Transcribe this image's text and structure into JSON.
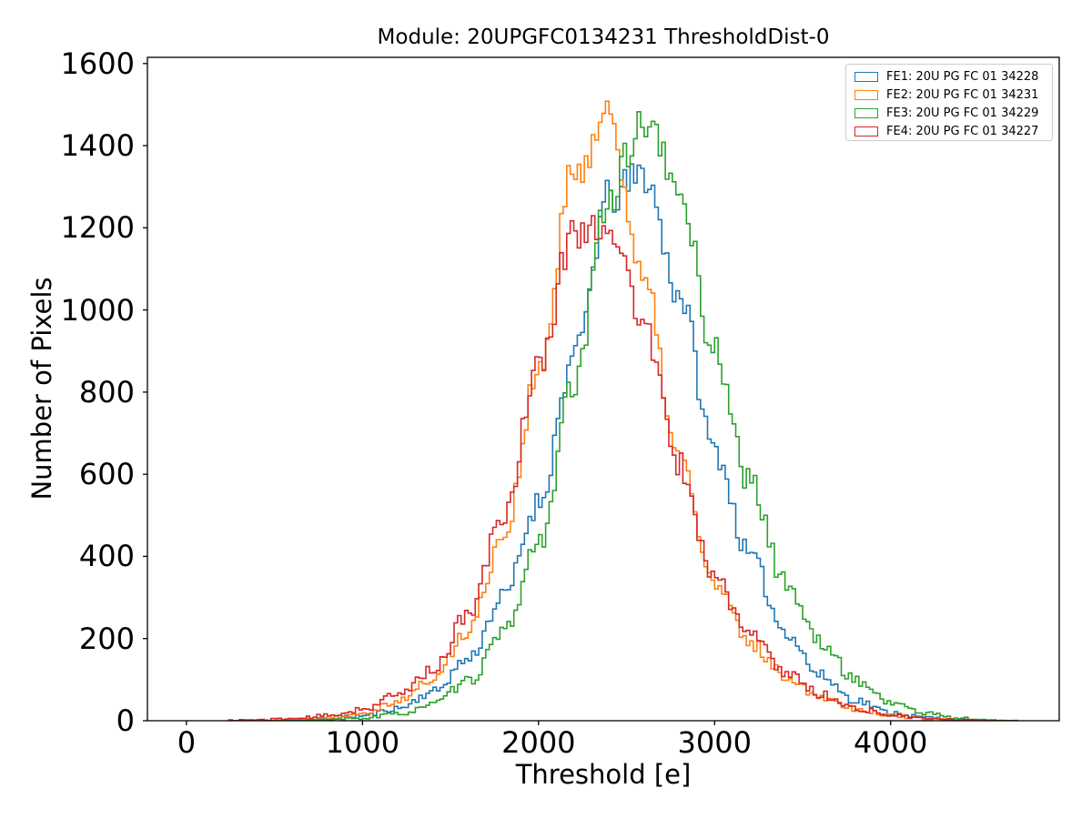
{
  "chart_data": {
    "type": "step-histogram",
    "title": "Module: 20UPGFC0134231 ThresholdDist-0",
    "xlabel": "Threshold [e]",
    "ylabel": "Number of Pixels",
    "xlim": [
      -222,
      4958
    ],
    "ylim": [
      0,
      1615
    ],
    "x_ticks": [
      0,
      1000,
      2000,
      3000,
      4000
    ],
    "y_ticks": [
      0,
      200,
      400,
      600,
      800,
      1000,
      1200,
      1400,
      1600
    ],
    "grid": false,
    "legend_position": "upper right",
    "frame_color": "#000000",
    "background": "#ffffff",
    "bin_width_e": 20,
    "data_range_e": [
      240,
      4720
    ],
    "anchor_thresholds": [
      0,
      200,
      400,
      600,
      800,
      1000,
      1200,
      1400,
      1600,
      1800,
      2000,
      2200,
      2400,
      2600,
      2800,
      3000,
      3200,
      3400,
      3600,
      3800,
      4000,
      4200,
      4400,
      4600,
      4800
    ],
    "series": [
      {
        "name": "FE1",
        "label": "FE1: 20U PG FC 01 34228",
        "color": "#1f77b4",
        "peak_value": 1395,
        "peak_threshold": 2480,
        "cap": 1400,
        "noise_seed": 11,
        "envelope": [
          0,
          0,
          0,
          1,
          5,
          12,
          30,
          70,
          150,
          300,
          530,
          880,
          1270,
          1330,
          1040,
          660,
          400,
          220,
          110,
          50,
          20,
          8,
          2,
          0,
          0
        ]
      },
      {
        "name": "FE2",
        "label": "FE2: 20U PG FC 01 34231",
        "color": "#ff7f0e",
        "peak_value": 1538,
        "peak_threshold": 2340,
        "cap": 1540,
        "noise_seed": 22,
        "envelope": [
          0,
          0,
          1,
          3,
          8,
          20,
          48,
          100,
          220,
          450,
          840,
          1330,
          1480,
          1060,
          640,
          330,
          190,
          110,
          60,
          30,
          13,
          5,
          1,
          0,
          0
        ]
      },
      {
        "name": "FE3",
        "label": "FE3: 20U PG FC 01 34229",
        "color": "#2ca02c",
        "peak_value": 1516,
        "peak_threshold": 2550,
        "cap": 1520,
        "noise_seed": 33,
        "envelope": [
          0,
          0,
          0,
          0,
          2,
          6,
          16,
          40,
          95,
          210,
          430,
          810,
          1280,
          1460,
          1290,
          900,
          580,
          340,
          190,
          100,
          45,
          18,
          6,
          1,
          0
        ]
      },
      {
        "name": "FE4",
        "label": "FE4: 20U PG FC 01 34227",
        "color": "#d62728",
        "peak_value": 1290,
        "peak_threshold": 2300,
        "cap": 1295,
        "noise_seed": 44,
        "envelope": [
          0,
          1,
          2,
          5,
          12,
          28,
          62,
          125,
          255,
          500,
          860,
          1190,
          1210,
          960,
          620,
          350,
          210,
          120,
          65,
          30,
          14,
          5,
          2,
          0,
          0
        ]
      }
    ]
  }
}
